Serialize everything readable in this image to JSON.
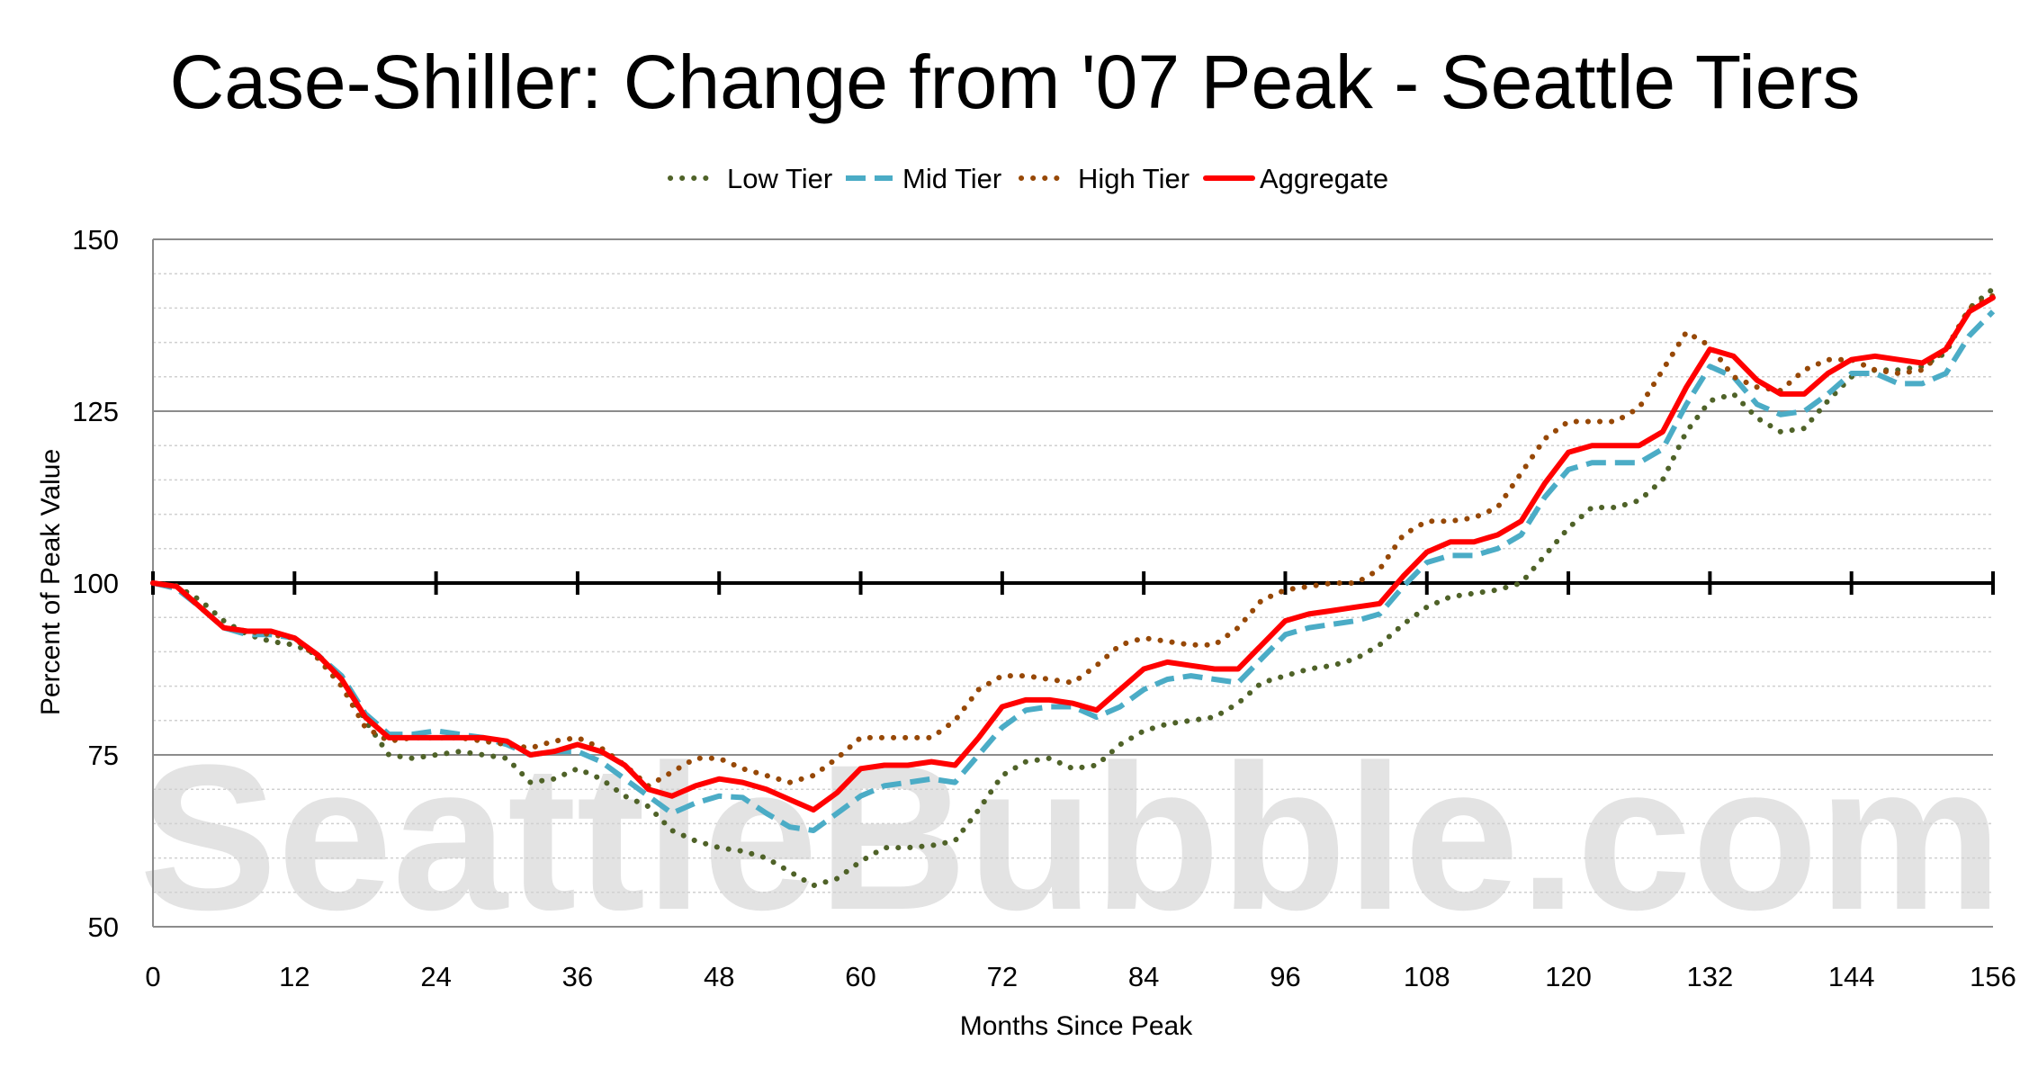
{
  "watermark": "SeattleBubble.com",
  "colors": {
    "low": "#4f6228",
    "mid": "#4bacc6",
    "high": "#974806",
    "agg": "#ff0000"
  },
  "chart_data": {
    "type": "line",
    "title": "Case-Shiller: Change from '07 Peak - Seattle Tiers",
    "xlabel": "Months Since Peak",
    "ylabel": "Percent of Peak Value",
    "xlim": [
      0,
      156
    ],
    "ylim": [
      50,
      150
    ],
    "xticks": [
      0,
      12,
      24,
      36,
      48,
      60,
      72,
      84,
      96,
      108,
      120,
      132,
      144,
      156
    ],
    "yticks": [
      50,
      75,
      100,
      125,
      150
    ],
    "baseline": 100,
    "legend_position": "top",
    "grid": true,
    "series": [
      {
        "name": "Low Tier",
        "style": "dotted",
        "color": "#4f6228",
        "x": [
          0,
          2,
          4,
          6,
          8,
          10,
          12,
          14,
          16,
          18,
          20,
          22,
          24,
          26,
          28,
          30,
          32,
          34,
          36,
          38,
          40,
          42,
          44,
          46,
          48,
          50,
          52,
          54,
          56,
          58,
          60,
          62,
          64,
          66,
          68,
          70,
          72,
          74,
          76,
          78,
          80,
          82,
          84,
          86,
          88,
          90,
          92,
          94,
          96,
          98,
          100,
          102,
          104,
          106,
          108,
          110,
          112,
          114,
          116,
          118,
          120,
          122,
          124,
          126,
          128,
          130,
          132,
          134,
          136,
          138,
          140,
          142,
          144,
          146,
          148,
          150,
          152,
          154,
          156
        ],
        "values": [
          100,
          99.6,
          97.5,
          94.5,
          92.5,
          91.5,
          91,
          89.5,
          86,
          80,
          75,
          74.5,
          75,
          75.5,
          75,
          74.5,
          71,
          71.5,
          73,
          71.5,
          69,
          67.5,
          64,
          62.5,
          61.5,
          61,
          60,
          58,
          56,
          57,
          59.5,
          61.5,
          61.5,
          61.8,
          62.5,
          67,
          72,
          74,
          74.5,
          73,
          73.5,
          76.5,
          78.5,
          79.5,
          80,
          80.5,
          82.5,
          85.5,
          86.5,
          87.5,
          88,
          89,
          91,
          94,
          96.5,
          98,
          98.5,
          99,
          100,
          104,
          108,
          111,
          111,
          112,
          115,
          122,
          126.5,
          127.5,
          124,
          122,
          122.5,
          126.5,
          130,
          131,
          131,
          131.5,
          133.5,
          140,
          142.8
        ]
      },
      {
        "name": "Mid Tier",
        "style": "dashed",
        "color": "#4bacc6",
        "x": [
          0,
          2,
          4,
          6,
          8,
          10,
          12,
          14,
          16,
          18,
          20,
          22,
          24,
          26,
          28,
          30,
          32,
          34,
          36,
          38,
          40,
          42,
          44,
          46,
          48,
          50,
          52,
          54,
          56,
          58,
          60,
          62,
          64,
          66,
          68,
          70,
          72,
          74,
          76,
          78,
          80,
          82,
          84,
          86,
          88,
          90,
          92,
          94,
          96,
          98,
          100,
          102,
          104,
          106,
          108,
          110,
          112,
          114,
          116,
          118,
          120,
          122,
          124,
          126,
          128,
          130,
          132,
          134,
          136,
          138,
          140,
          142,
          144,
          146,
          148,
          150,
          152,
          154,
          156
        ],
        "values": [
          100,
          99.2,
          96.5,
          93.5,
          92.5,
          92.5,
          92,
          89.5,
          86.5,
          81,
          78,
          78,
          78.5,
          78,
          77.5,
          76.5,
          75,
          75.5,
          75.5,
          74,
          71.5,
          69,
          66.5,
          68,
          69,
          68.8,
          66.5,
          64.5,
          64,
          66.5,
          69,
          70.5,
          71,
          71.5,
          71,
          75,
          79,
          81.5,
          82,
          82,
          80.5,
          82,
          84.5,
          86,
          86.5,
          86,
          85.5,
          89,
          92.5,
          93.5,
          94,
          94.5,
          95.5,
          99.5,
          103,
          104,
          104,
          105,
          107,
          112.5,
          116.5,
          117.5,
          117.5,
          117.5,
          119.5,
          126,
          131.5,
          130,
          126,
          124.5,
          125,
          127.5,
          130.5,
          130.5,
          129,
          129,
          130.5,
          136,
          139.5
        ]
      },
      {
        "name": "High Tier",
        "style": "dotted",
        "color": "#974806",
        "x": [
          0,
          2,
          4,
          6,
          8,
          10,
          12,
          14,
          16,
          18,
          20,
          22,
          24,
          26,
          28,
          30,
          32,
          34,
          36,
          38,
          40,
          42,
          44,
          46,
          48,
          50,
          52,
          54,
          56,
          58,
          60,
          62,
          64,
          66,
          68,
          70,
          72,
          74,
          76,
          78,
          80,
          82,
          84,
          86,
          88,
          90,
          92,
          94,
          96,
          98,
          100,
          102,
          104,
          106,
          108,
          110,
          112,
          114,
          116,
          118,
          120,
          122,
          124,
          126,
          128,
          130,
          132,
          134,
          136,
          138,
          140,
          142,
          144,
          146,
          148,
          150,
          152,
          154,
          156
        ],
        "values": [
          100,
          99.5,
          96.5,
          93.5,
          93,
          92.5,
          92,
          89,
          85,
          79,
          77,
          77.5,
          77.5,
          77.5,
          77,
          76.5,
          76,
          77,
          77.5,
          76,
          73.5,
          70.5,
          72.5,
          74.5,
          74.5,
          73,
          72,
          71,
          72,
          74.5,
          77.5,
          77.5,
          77.5,
          77.5,
          80,
          84.5,
          86.5,
          86.5,
          86,
          85.5,
          88,
          91,
          92,
          91.5,
          91,
          91,
          93.5,
          97.5,
          99,
          99.5,
          100,
          100,
          102,
          107,
          109,
          109,
          109.5,
          111,
          116,
          121,
          123.5,
          123.5,
          123.5,
          125.5,
          131,
          136.5,
          134.5,
          130,
          128.5,
          128,
          131,
          132.5,
          132.5,
          131,
          130.5,
          131,
          134,
          140,
          141.8
        ]
      },
      {
        "name": "Aggregate",
        "style": "solid",
        "color": "#ff0000",
        "x": [
          0,
          2,
          4,
          6,
          8,
          10,
          12,
          14,
          16,
          18,
          20,
          22,
          24,
          26,
          28,
          30,
          32,
          34,
          36,
          38,
          40,
          42,
          44,
          46,
          48,
          50,
          52,
          54,
          56,
          58,
          60,
          62,
          64,
          66,
          68,
          70,
          72,
          74,
          76,
          78,
          80,
          82,
          84,
          86,
          88,
          90,
          92,
          94,
          96,
          98,
          100,
          102,
          104,
          106,
          108,
          110,
          112,
          114,
          116,
          118,
          120,
          122,
          124,
          126,
          128,
          130,
          132,
          134,
          136,
          138,
          140,
          142,
          144,
          146,
          148,
          150,
          152,
          154,
          156
        ],
        "values": [
          100,
          99.5,
          96.5,
          93.5,
          93,
          93,
          92,
          89.5,
          86,
          80.5,
          77.5,
          77.5,
          77.5,
          77.5,
          77.5,
          77,
          75,
          75.5,
          76.5,
          75.5,
          73.5,
          70,
          69,
          70.5,
          71.5,
          71,
          70,
          68.5,
          67,
          69.5,
          73,
          73.5,
          73.5,
          74,
          73.5,
          77.5,
          82,
          83,
          83,
          82.5,
          81.5,
          84.5,
          87.5,
          88.5,
          88,
          87.5,
          87.5,
          91,
          94.5,
          95.5,
          96,
          96.5,
          97,
          101,
          104.5,
          106,
          106,
          107,
          109,
          114.5,
          119,
          120,
          120,
          120,
          122,
          128.5,
          134,
          133,
          129.5,
          127.5,
          127.5,
          130.5,
          132.5,
          133,
          132.5,
          132,
          134,
          139.5,
          141.5
        ]
      }
    ]
  }
}
